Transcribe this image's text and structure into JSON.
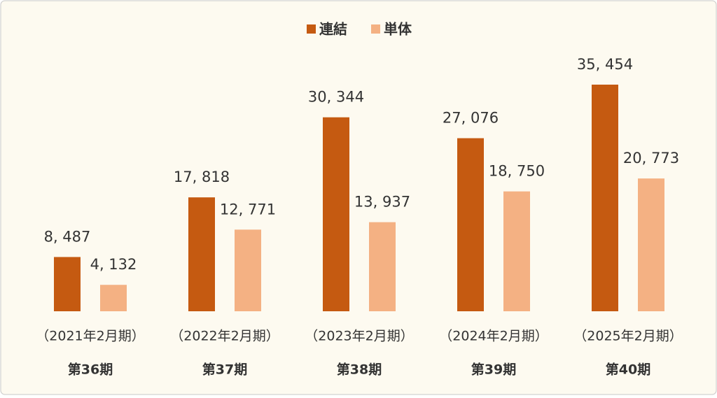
{
  "chart_data": {
    "type": "bar",
    "categories": [
      "第36期",
      "第37期",
      "第38期",
      "第39期",
      "第40期"
    ],
    "periods": [
      "（2021年2月期）",
      "（2022年2月期）",
      "（2023年2月期）",
      "（2024年2月期）",
      "（2025年2月期）"
    ],
    "series": [
      {
        "name": "連結",
        "color": "#c55a11",
        "values": [
          8487,
          17818,
          30344,
          27076,
          35454
        ],
        "value_labels": [
          "8, 487",
          "17, 818",
          "30, 344",
          "27, 076",
          "35, 454"
        ]
      },
      {
        "name": "単体",
        "color": "#f4b183",
        "values": [
          4132,
          12771,
          13937,
          18750,
          20773
        ],
        "value_labels": [
          "4, 132",
          "12, 771",
          "13, 937",
          "18, 750",
          "20, 773"
        ]
      }
    ],
    "legend": "top"
  }
}
